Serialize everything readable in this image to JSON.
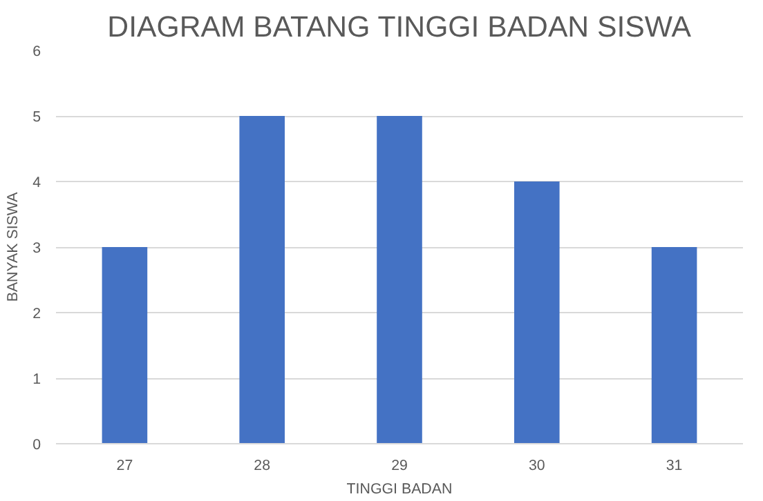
{
  "chart_data": {
    "type": "bar",
    "title": "DIAGRAM BATANG TINGGI BADAN SISWA",
    "xlabel": "TINGGI BADAN",
    "ylabel": "BANYAK SISWA",
    "categories": [
      "27",
      "28",
      "29",
      "30",
      "31"
    ],
    "values": [
      3,
      5,
      5,
      4,
      3
    ],
    "color": "#4472c4",
    "ylim": [
      0,
      6
    ],
    "yticks": [
      0,
      1,
      2,
      3,
      4,
      5,
      6
    ],
    "grid": "y"
  }
}
